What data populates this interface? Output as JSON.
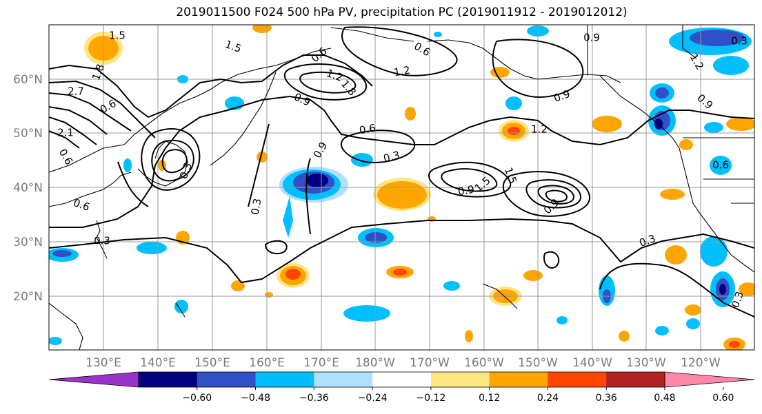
{
  "title": "2019011500 F024 500 hPa PV, precipitation PC (2019011912 - 2019012012)",
  "axes": {
    "lat_labels": [
      "60°N",
      "50°N",
      "40°N",
      "30°N",
      "20°N"
    ],
    "lon_labels": [
      "130°E",
      "140°E",
      "150°E",
      "160°E",
      "170°E",
      "180°W",
      "170°W",
      "160°W",
      "150°W",
      "140°W",
      "130°W",
      "120°W"
    ]
  },
  "colorbar": {
    "tick_labels": [
      "−0.60",
      "−0.48",
      "−0.36",
      "−0.24",
      "−0.12",
      "0.12",
      "0.24",
      "0.36",
      "0.48",
      "0.60"
    ],
    "colors": [
      "#9933cc",
      "#000080",
      "#3050c8",
      "#00bfff",
      "#b0e0ff",
      "#ffffff",
      "#ffe680",
      "#ffa500",
      "#ff4500",
      "#b22222",
      "#ff88aa"
    ],
    "extend": "both"
  },
  "contour_labels": [
    {
      "text": "1.5"
    },
    {
      "text": "1.5"
    },
    {
      "text": "1.8"
    },
    {
      "text": "2.7"
    },
    {
      "text": "0.6"
    },
    {
      "text": "2.1"
    },
    {
      "text": "0.6"
    },
    {
      "text": "0.6"
    },
    {
      "text": "0.3"
    },
    {
      "text": "0.3"
    },
    {
      "text": "0.6"
    },
    {
      "text": "1.2"
    },
    {
      "text": "1.8"
    },
    {
      "text": "0.9"
    },
    {
      "text": "1.2"
    },
    {
      "text": "0.6"
    },
    {
      "text": "0.9"
    },
    {
      "text": "0.9"
    },
    {
      "text": "0.9"
    },
    {
      "text": "0.6"
    },
    {
      "text": "0.3"
    },
    {
      "text": "0.9"
    },
    {
      "text": "1.5"
    },
    {
      "text": "0.9"
    },
    {
      "text": "1.2"
    },
    {
      "text": "1.5"
    },
    {
      "text": "1.2"
    },
    {
      "text": "0.9"
    },
    {
      "text": "0.3"
    },
    {
      "text": "0.3"
    },
    {
      "text": "0.6"
    },
    {
      "text": "0.3"
    },
    {
      "text": "0.3"
    }
  ]
}
